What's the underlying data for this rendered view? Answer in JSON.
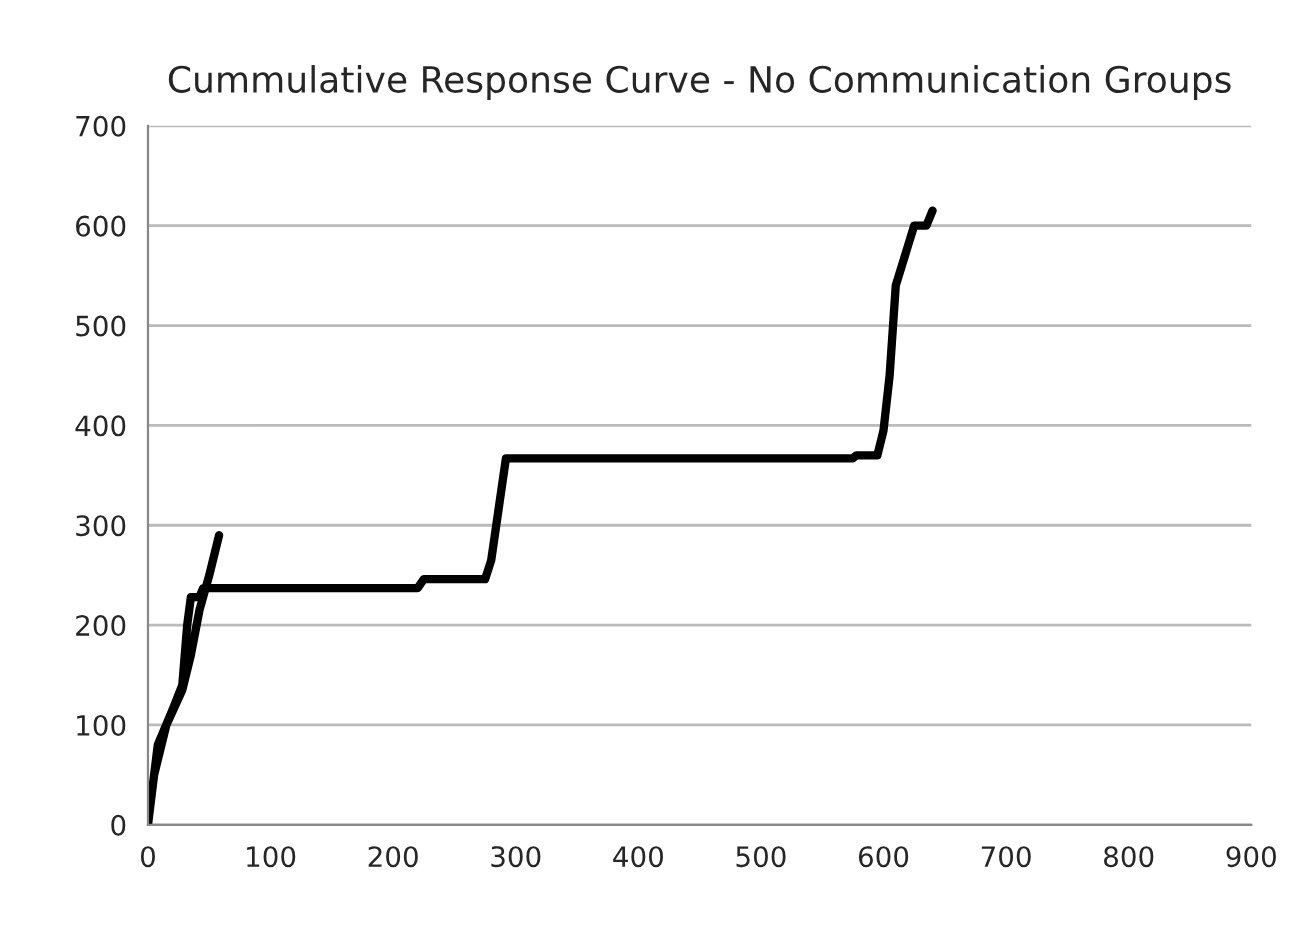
{
  "chart_data": {
    "type": "line",
    "title": "Cummulative Response Curve - No Communication Groups",
    "x": [
      58,
      50,
      42,
      35,
      28,
      15,
      5,
      0,
      8,
      20,
      28,
      32,
      35,
      42,
      45,
      220,
      225,
      275,
      280,
      292,
      575,
      578,
      595,
      600,
      605,
      610,
      620,
      625,
      635,
      640
    ],
    "series": [
      {
        "color": "#000000",
        "values": [
          290,
          250,
          215,
          170,
          135,
          100,
          50,
          0,
          80,
          115,
          140,
          200,
          228,
          228,
          237,
          237,
          246,
          246,
          265,
          367,
          367,
          370,
          370,
          395,
          450,
          540,
          580,
          600,
          600,
          615
        ]
      }
    ],
    "xlim": [
      0,
      900
    ],
    "xticks": [
      0,
      100,
      200,
      300,
      400,
      500,
      600,
      700,
      800,
      900
    ],
    "ylim": [
      0,
      700
    ],
    "yticks": [
      0,
      100,
      200,
      300,
      400,
      500,
      600,
      700
    ],
    "grid": "y",
    "legend": false,
    "marker": "none",
    "line_style": "solid"
  }
}
